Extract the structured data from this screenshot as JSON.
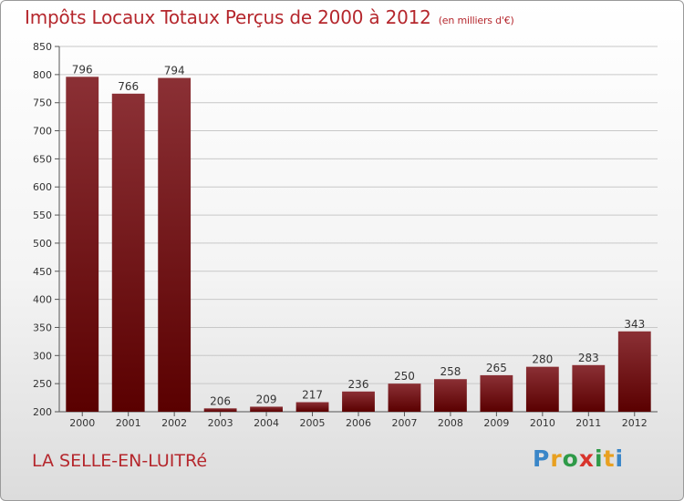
{
  "colors": {
    "title": "#b5272d",
    "bar_top": "#8b3035",
    "bar_bottom": "#5a0000",
    "grid": "#c8c8c8"
  },
  "chart_data": {
    "type": "bar",
    "title": "Impôts Locaux Totaux Perçus de 2000 à 2012",
    "subtitle": "(en milliers d'€)",
    "categories": [
      "2000",
      "2001",
      "2002",
      "2003",
      "2004",
      "2005",
      "2006",
      "2007",
      "2008",
      "2009",
      "2010",
      "2011",
      "2012"
    ],
    "values": [
      796,
      766,
      794,
      206,
      209,
      217,
      236,
      250,
      258,
      265,
      280,
      283,
      343
    ],
    "ylim": [
      200,
      850
    ],
    "yticks": [
      200,
      250,
      300,
      350,
      400,
      450,
      500,
      550,
      600,
      650,
      700,
      750,
      800,
      850
    ],
    "grid": true,
    "xlabel": "",
    "ylabel": ""
  },
  "commune": "LA SELLE-EN-LUITRé",
  "logo": {
    "text": "Proxiti",
    "letter_colors": [
      "#3a86c8",
      "#e8a020",
      "#2e9a48",
      "#d8342c",
      "#2e9a48",
      "#e8a020",
      "#3a86c8"
    ]
  }
}
